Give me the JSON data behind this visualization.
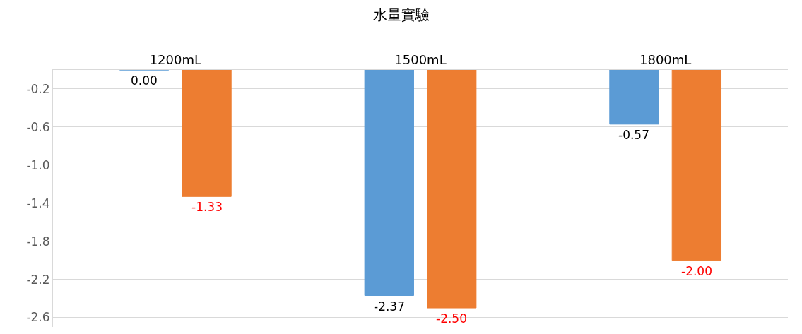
{
  "chart_data": {
    "type": "bar",
    "title": "水量實驗",
    "categories": [
      "1200mL",
      "1500mL",
      "1800mL"
    ],
    "series": [
      {
        "color": "#5b9bd5",
        "values": [
          0,
          -2.37,
          -0.57
        ],
        "value_labels": [
          "0.00",
          "-2.37",
          "-0.57"
        ]
      },
      {
        "color": "#ed7d31",
        "values": [
          -1.33,
          -2.5,
          -2.0
        ],
        "value_labels": [
          "-1.33",
          "-2.50",
          "-2.00"
        ]
      }
    ],
    "ylim": [
      -2.7,
      0
    ],
    "yticks": [
      {
        "value": -0.2,
        "label": "-0.2"
      },
      {
        "value": -0.6,
        "label": "-0.6"
      },
      {
        "value": -1.0,
        "label": "-1.0"
      },
      {
        "value": -1.4,
        "label": "-1.4"
      },
      {
        "value": -1.8,
        "label": "-1.8"
      },
      {
        "value": -2.2,
        "label": "-2.2"
      },
      {
        "value": -2.6,
        "label": "-2.6"
      }
    ],
    "grid": "y"
  }
}
